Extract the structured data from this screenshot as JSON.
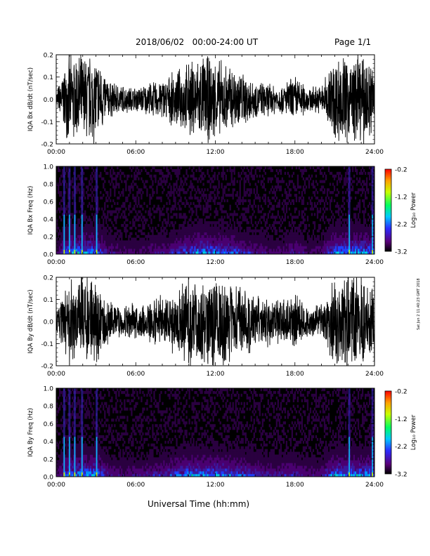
{
  "header": {
    "date_range": "2018/06/02   00:00-24:00 UT",
    "page": "Page 1/1"
  },
  "footer_stamp": "Sat Jun  2 11:40:23 GMT 2018",
  "chart_data": [
    {
      "id": "bx-dbdt",
      "type": "line",
      "ylabel": "IQA Bx dB/dt (nT/sec)",
      "xlim": [
        "00:00",
        "24:00"
      ],
      "xticks": [
        "00:00",
        "06:00",
        "12:00",
        "18:00",
        "24:00"
      ],
      "ylim": [
        -0.2,
        0.2
      ],
      "yticks": [
        "-0.2",
        "-0.1",
        "0.0",
        "0.1",
        "0.2"
      ],
      "envelope_hours": [
        0,
        1,
        2,
        3,
        4,
        5,
        6,
        7,
        8,
        9,
        10,
        11,
        12,
        13,
        14,
        15,
        16,
        17,
        18,
        19,
        20,
        21,
        22,
        23,
        24
      ],
      "envelope_amplitude": [
        0.04,
        0.22,
        0.22,
        0.22,
        0.09,
        0.07,
        0.06,
        0.08,
        0.1,
        0.13,
        0.18,
        0.22,
        0.2,
        0.17,
        0.14,
        0.09,
        0.08,
        0.07,
        0.12,
        0.06,
        0.07,
        0.22,
        0.22,
        0.22,
        0.2
      ]
    },
    {
      "id": "bx-spec",
      "type": "heatmap",
      "ylabel": "IQA Bx Freq (Hz)",
      "xlim": [
        "00:00",
        "24:00"
      ],
      "xticks": [
        "00:00",
        "06:00",
        "12:00",
        "18:00",
        "24:00"
      ],
      "ylim": [
        0.0,
        1.0
      ],
      "yticks": [
        "0.0",
        "0.2",
        "0.4",
        "0.6",
        "0.8",
        "1.0"
      ],
      "colorbar": {
        "label": "Log₁₀ Power",
        "range": [
          -3.2,
          -0.2
        ],
        "ticks": [
          "-0.2",
          "-1.2",
          "-2.2",
          "-3.2"
        ]
      },
      "burst_hours": [
        0.6,
        1.0,
        1.4,
        1.95,
        3.05,
        22.1,
        23.85
      ]
    },
    {
      "id": "by-dbdt",
      "type": "line",
      "ylabel": "IQA By dB/dt (nT/sec)",
      "xlim": [
        "00:00",
        "24:00"
      ],
      "xticks": [
        "00:00",
        "06:00",
        "12:00",
        "18:00",
        "24:00"
      ],
      "ylim": [
        -0.2,
        0.2
      ],
      "yticks": [
        "-0.2",
        "-0.1",
        "0.0",
        "0.1",
        "0.2"
      ],
      "envelope_hours": [
        0,
        1,
        2,
        3,
        4,
        5,
        6,
        7,
        8,
        9,
        10,
        11,
        12,
        13,
        14,
        15,
        16,
        17,
        18,
        19,
        20,
        21,
        22,
        23,
        24
      ],
      "envelope_amplitude": [
        0.05,
        0.22,
        0.22,
        0.22,
        0.1,
        0.08,
        0.09,
        0.1,
        0.13,
        0.17,
        0.22,
        0.22,
        0.22,
        0.2,
        0.17,
        0.13,
        0.12,
        0.11,
        0.14,
        0.08,
        0.09,
        0.22,
        0.22,
        0.22,
        0.2
      ]
    },
    {
      "id": "by-spec",
      "type": "heatmap",
      "ylabel": "IQA By Freq (Hz)",
      "xlim": [
        "00:00",
        "24:00"
      ],
      "xticks": [
        "00:00",
        "06:00",
        "12:00",
        "18:00",
        "24:00"
      ],
      "ylim": [
        0.0,
        1.0
      ],
      "yticks": [
        "0.0",
        "0.2",
        "0.4",
        "0.6",
        "0.8",
        "1.0"
      ],
      "colorbar": {
        "label": "Log₁₀ Power",
        "range": [
          -3.2,
          -0.2
        ],
        "ticks": [
          "-0.2",
          "-1.2",
          "-2.2",
          "-3.2"
        ]
      },
      "burst_hours": [
        0.6,
        1.0,
        1.4,
        1.95,
        3.05,
        22.1,
        23.85
      ]
    }
  ],
  "xlabel": "Universal Time (hh:mm)"
}
